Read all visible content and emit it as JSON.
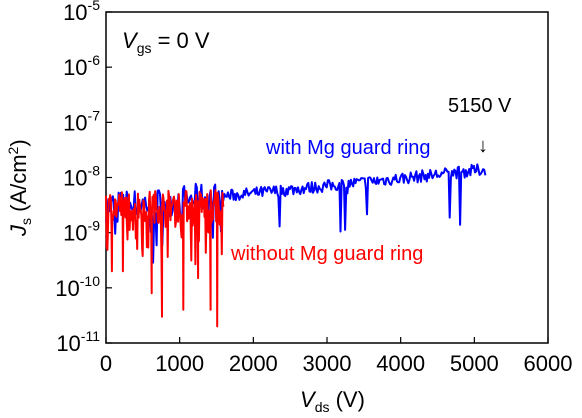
{
  "chart_data": {
    "type": "line",
    "x_axis": {
      "label_var": "V",
      "label_sub": "ds",
      "label_unit": " (V)",
      "range": [
        0,
        6000
      ],
      "ticks": [
        0,
        1000,
        2000,
        3000,
        4000,
        5000,
        6000
      ],
      "tick_labels": [
        "0",
        "1000",
        "2000",
        "3000",
        "4000",
        "5000",
        "6000"
      ]
    },
    "y_axis": {
      "label_var": "J",
      "label_sub": "s",
      "label_unit_pre": " (A/cm",
      "label_unit_sup": "2",
      "label_unit_post": ")",
      "scale": "log",
      "range": [
        1e-11,
        1e-05
      ],
      "ticks": [
        {
          "base": "10",
          "exp": "-11"
        },
        {
          "base": "10",
          "exp": "-10"
        },
        {
          "base": "10",
          "exp": "-9"
        },
        {
          "base": "10",
          "exp": "-8"
        },
        {
          "base": "10",
          "exp": "-7"
        },
        {
          "base": "10",
          "exp": "-6"
        },
        {
          "base": "10",
          "exp": "-5"
        }
      ]
    },
    "condition": {
      "var": "V",
      "sub": "gs",
      "rest": " = 0 V"
    },
    "series": [
      {
        "name": "with Mg guard ring",
        "color": "#0000ff",
        "x_range": [
          0,
          5150
        ],
        "start_value": 3e-09,
        "end_value": 1.4e-08,
        "noise": "moderate"
      },
      {
        "name": "without Mg guard ring",
        "color": "#ff0000",
        "x_range": [
          0,
          1600
        ],
        "typical_value": 3e-09,
        "min_dips": [
          {
            "x": 80,
            "y": 2e-10
          },
          {
            "x": 230,
            "y": 2e-10
          },
          {
            "x": 620,
            "y": 8e-11
          },
          {
            "x": 760,
            "y": 3e-11
          },
          {
            "x": 1050,
            "y": 4e-11
          },
          {
            "x": 1250,
            "y": 1.5e-10
          },
          {
            "x": 1420,
            "y": 4e-11
          },
          {
            "x": 1510,
            "y": 2e-11
          }
        ]
      }
    ],
    "annotations": [
      {
        "text": "5150 V",
        "arrow": "↓",
        "points_to_x": 5150
      }
    ]
  }
}
